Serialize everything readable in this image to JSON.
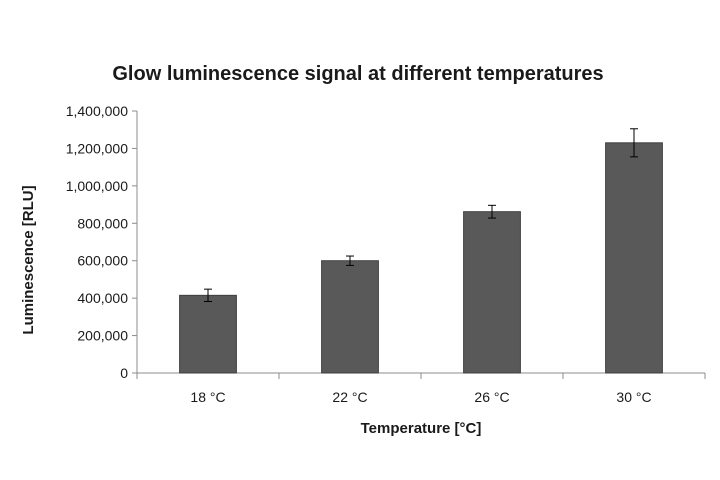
{
  "chart_data": {
    "type": "bar",
    "title": "Glow luminescence signal at different temperatures",
    "xlabel": "Temperature [°C]",
    "ylabel": "Luminescence [RLU]",
    "categories": [
      "18 °C",
      "22 °C",
      "26 °C",
      "30 °C"
    ],
    "values": [
      415000,
      600000,
      862000,
      1230000
    ],
    "error": [
      33000,
      25000,
      34000,
      75000
    ],
    "ylim": [
      0,
      1400000
    ],
    "yticks": [
      0,
      200000,
      400000,
      600000,
      800000,
      1000000,
      1200000,
      1400000
    ],
    "ytick_labels": [
      "0",
      "200,000",
      "400,000",
      "600,000",
      "800,000",
      "1,000,000",
      "1,200,000",
      "1,400,000"
    ],
    "bar_color": "#595959",
    "grid": false,
    "legend": "none"
  }
}
